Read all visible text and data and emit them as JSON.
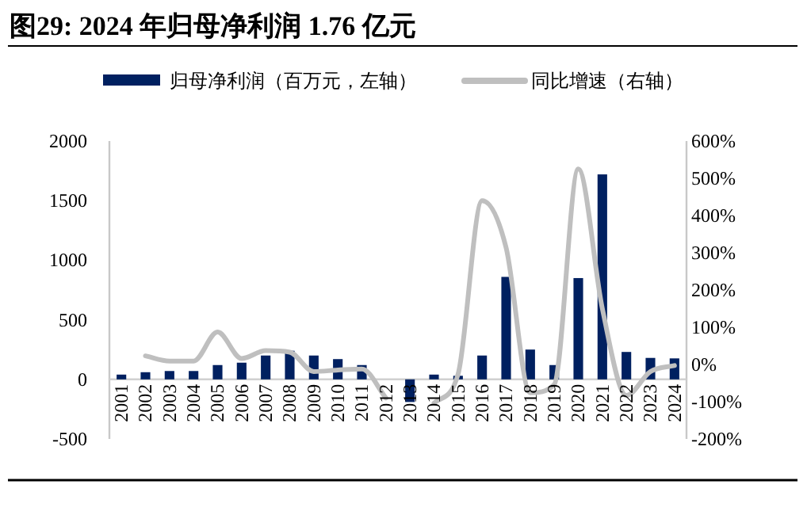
{
  "chart_data": {
    "type": "bar",
    "title": "图29:  2024 年归母净利润 1.76 亿元",
    "categories": [
      "2001",
      "2002",
      "2003",
      "2004",
      "2005",
      "2006",
      "2007",
      "2008",
      "2009",
      "2010",
      "2011",
      "2012",
      "2013",
      "2014",
      "2015",
      "2016",
      "2017",
      "2018",
      "2019",
      "2020",
      "2021",
      "2022",
      "2023",
      "2024"
    ],
    "series": [
      {
        "name": "归母净利润（百万元，左轴）",
        "color": "#002060",
        "values": [
          40,
          60,
          70,
          70,
          120,
          140,
          200,
          240,
          200,
          170,
          120,
          0,
          -190,
          40,
          30,
          200,
          860,
          250,
          120,
          850,
          1720,
          230,
          180,
          176
        ]
      },
      {
        "name": "同比增速（右轴）",
        "type": "line",
        "axis": "y2",
        "color": "#bfbfbf",
        "values": [
          null,
          23,
          9,
          9,
          87,
          16,
          37,
          33,
          -19,
          -15,
          -12,
          -90,
          null,
          -104,
          -26,
          440,
          313,
          -76,
          -54,
          525,
          150,
          -83,
          -19,
          -3
        ]
      }
    ],
    "ylim": [
      -500,
      2000
    ],
    "yticks": [
      -500,
      0,
      500,
      1000,
      1500,
      2000
    ],
    "y2lim": [
      -200,
      600
    ],
    "y2ticks": [
      {
        "value": -200,
        "label": "-200%"
      },
      {
        "value": -100,
        "label": "-100%"
      },
      {
        "value": 0,
        "label": "0%"
      },
      {
        "value": 100,
        "label": "100%"
      },
      {
        "value": 200,
        "label": "200%"
      },
      {
        "value": 300,
        "label": "300%"
      },
      {
        "value": 400,
        "label": "400%"
      },
      {
        "value": 500,
        "label": "500%"
      },
      {
        "value": 600,
        "label": "600%"
      }
    ],
    "legend": "top",
    "grid": false,
    "line_style": "solid"
  }
}
